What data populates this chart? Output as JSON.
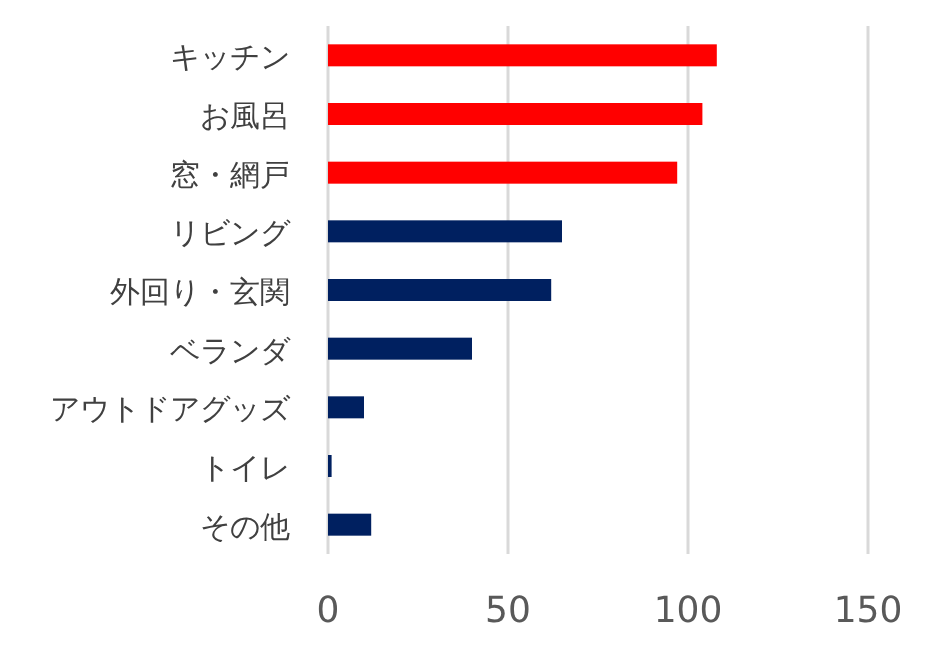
{
  "chart_data": {
    "type": "bar",
    "orientation": "horizontal",
    "categories": [
      "キッチン",
      "お風呂",
      "窓・網戸",
      "リビング",
      "外回り・玄関",
      "ベランダ",
      "アウトドアグッズ",
      "トイレ",
      "その他"
    ],
    "values": [
      108,
      104,
      97,
      65,
      62,
      40,
      10,
      1,
      12
    ],
    "colors": [
      "#ff0000",
      "#ff0000",
      "#ff0000",
      "#002060",
      "#002060",
      "#002060",
      "#002060",
      "#002060",
      "#002060"
    ],
    "xlim": [
      0,
      150
    ],
    "xticks": [
      0,
      50,
      100,
      150
    ],
    "grid": "x"
  }
}
